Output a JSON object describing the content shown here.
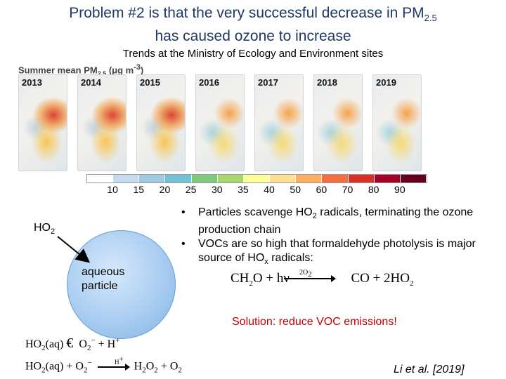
{
  "slide": {
    "title_line1": "Problem #2 is that the very successful decrease in PM",
    "title_sub": "2.5",
    "title_line2": "has caused ozone to increase",
    "subtitle": "Trends at the Ministry of Ecology and Environment sites"
  },
  "maps": {
    "caption": "Summer mean PM",
    "caption_sub": "2.5",
    "caption_units": "(μg m",
    "caption_exp": "-3",
    "caption_close": ")",
    "years": [
      "2013",
      "2014",
      "2015",
      "2016",
      "2017",
      "2018",
      "2019"
    ],
    "colorbar_ticks": [
      "10",
      "15",
      "20",
      "25",
      "30",
      "35",
      "40",
      "50",
      "60",
      "70",
      "80",
      "90"
    ],
    "colorbar_colors": [
      "#ffffff",
      "#c6dbef",
      "#9ecae1",
      "#74c0d4",
      "#7fc97f",
      "#a6d96a",
      "#ffff99",
      "#fee090",
      "#fdae61",
      "#f46d43",
      "#d73027",
      "#a50026",
      "#67001f"
    ]
  },
  "bullets": {
    "b1_pre": "Particles scavenge HO",
    "b1_sub": "2",
    "b1_post": " radicals, terminating the ozone production chain",
    "b2_pre": "VOCs are so high that formaldehyde photolysis is major source of HO",
    "b2_sub": "x",
    "b2_post": " radicals:"
  },
  "particle": {
    "ho2_text": "HO",
    "ho2_sub": "2",
    "label": "aqueous particle"
  },
  "reaction1": {
    "lhs": "CH",
    "lhs_sub": "2",
    "lhs_rest": "O + hν",
    "above_arrow": "2O",
    "above_arrow_sub": "2",
    "rhs": "CO + 2HO",
    "rhs_sub": "2"
  },
  "solution": "Solution: reduce VOC emissions!",
  "reactionA": {
    "lhs": "HO",
    "lhs_sub": "2",
    "lhs_phase": "(aq)",
    "arrow": "€",
    "rhs": "O",
    "rhs_sub": "2",
    "rhs_sup": "−",
    "rhs_rest": " + H",
    "rhs_rest_sup": "+"
  },
  "reactionB": {
    "lhs": "HO",
    "lhs_sub": "2",
    "lhs_phase": "(aq) + O",
    "lhs2_sub": "2",
    "lhs2_sup": "−",
    "over_arrow": "H",
    "over_arrow_sup": "+",
    "rhs": "H",
    "rhs_sub1": "2",
    "rhs_mid": "O",
    "rhs_sub2": "2",
    "rhs_end": " + O",
    "rhs_sub3": "2"
  },
  "citation": "Li et al. [2019]"
}
